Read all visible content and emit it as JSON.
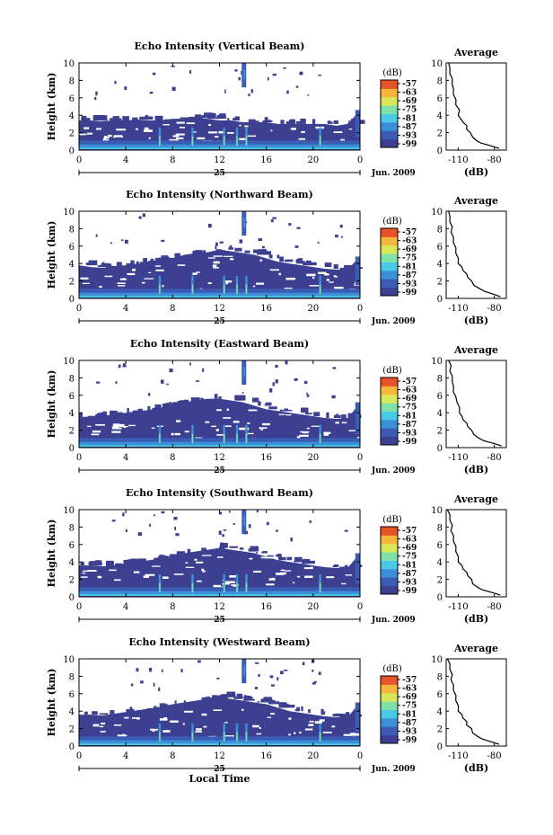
{
  "chart_data": [
    {
      "type": "heatmap",
      "title": "Echo Intensity (Vertical Beam)",
      "ylabel": "Height (km)",
      "xlabel": "",
      "x_ticks": [
        "0",
        "4",
        "8",
        "12",
        "16",
        "20",
        "0"
      ],
      "y_ticks": [
        "0",
        "2",
        "4",
        "6",
        "8",
        "10"
      ],
      "xlim": [
        0,
        24
      ],
      "ylim": [
        0,
        10
      ],
      "day_label": "25",
      "month_label": "Jun. 2009",
      "colorbar": {
        "unit": "(dB)",
        "ticks": [
          "-57",
          "-63",
          "-69",
          "-75",
          "-81",
          "-87",
          "-93",
          "-99"
        ]
      },
      "layer_top_km": [
        3.4,
        3.4,
        3.3,
        3.4,
        3.4,
        3.5,
        3.4,
        3.4,
        3.6,
        3.6,
        3.7,
        3.6,
        3.4,
        3.4,
        3.2,
        3.2,
        3.2,
        3.0,
        3.0,
        3.0,
        3.0,
        3.0,
        2.8,
        3.0,
        4.6
      ],
      "average_profile": {
        "title": "Average",
        "xlabel": "(dB)",
        "x_ticks": [
          "-110",
          "-80"
        ],
        "xlim": [
          -120,
          -70
        ],
        "y_ticks": [
          "0",
          "2",
          "4",
          "6",
          "8",
          "10"
        ],
        "ylim": [
          0,
          10
        ],
        "dB": [
          -76,
          -84,
          -91,
          -96,
          -98,
          -101,
          -103,
          -104,
          -106,
          -109,
          -110,
          -110,
          -112,
          -113,
          -114,
          -115,
          -115,
          -116,
          -117,
          -118,
          -118
        ],
        "height": [
          0.2,
          0.5,
          0.8,
          1.1,
          1.5,
          2.0,
          2.4,
          2.8,
          3.2,
          3.6,
          4.0,
          4.6,
          5.2,
          5.8,
          6.4,
          7.0,
          7.6,
          8.2,
          8.8,
          9.4,
          10.0
        ]
      }
    },
    {
      "type": "heatmap",
      "title": "Echo Intensity (Northward Beam)",
      "ylabel": "Height (km)",
      "xlabel": "",
      "x_ticks": [
        "0",
        "4",
        "8",
        "12",
        "16",
        "20",
        "0"
      ],
      "y_ticks": [
        "0",
        "2",
        "4",
        "6",
        "8",
        "10"
      ],
      "xlim": [
        0,
        24
      ],
      "ylim": [
        0,
        10
      ],
      "day_label": "25",
      "month_label": "Jun. 2009",
      "colorbar": {
        "unit": "(dB)",
        "ticks": [
          "-57",
          "-63",
          "-69",
          "-75",
          "-81",
          "-87",
          "-93",
          "-99"
        ]
      },
      "layer_top_km": [
        3.8,
        3.6,
        3.5,
        3.6,
        3.8,
        4.0,
        4.2,
        4.3,
        4.6,
        5.0,
        5.2,
        5.3,
        5.6,
        5.4,
        5.2,
        5.0,
        4.6,
        4.2,
        4.0,
        3.8,
        3.6,
        3.4,
        3.3,
        3.4,
        4.8
      ],
      "average_profile": {
        "title": "Average",
        "xlabel": "(dB)",
        "x_ticks": [
          "-110",
          "-80"
        ],
        "xlim": [
          -120,
          -70
        ],
        "dB": [
          -75,
          -82,
          -88,
          -93,
          -97,
          -100,
          -102,
          -104,
          -106,
          -108,
          -110,
          -111,
          -112,
          -113,
          -114,
          -115,
          -116,
          -116,
          -117,
          -118,
          -118
        ],
        "height": [
          0.2,
          0.5,
          0.8,
          1.1,
          1.5,
          2.0,
          2.4,
          2.8,
          3.2,
          3.6,
          4.0,
          4.6,
          5.2,
          5.8,
          6.4,
          7.0,
          7.6,
          8.2,
          8.8,
          9.4,
          10.0
        ]
      }
    },
    {
      "type": "heatmap",
      "title": "Echo Intensity (Eastward Beam)",
      "ylabel": "Height (km)",
      "xlabel": "",
      "x_ticks": [
        "0",
        "4",
        "8",
        "12",
        "16",
        "20",
        "0"
      ],
      "y_ticks": [
        "0",
        "2",
        "4",
        "6",
        "8",
        "10"
      ],
      "xlim": [
        0,
        24
      ],
      "ylim": [
        0,
        10
      ],
      "day_label": "25",
      "month_label": "Jun. 2009",
      "colorbar": {
        "unit": "(dB)",
        "ticks": [
          "-57",
          "-63",
          "-69",
          "-75",
          "-81",
          "-87",
          "-93",
          "-99"
        ]
      },
      "layer_top_km": [
        3.4,
        3.5,
        3.6,
        3.8,
        4.0,
        4.2,
        4.3,
        4.6,
        5.0,
        5.2,
        5.4,
        5.6,
        5.6,
        5.4,
        5.2,
        4.8,
        4.4,
        4.2,
        4.0,
        3.8,
        3.6,
        3.4,
        3.3,
        3.4,
        5.2
      ],
      "average_profile": {
        "title": "Average",
        "xlabel": "(dB)",
        "x_ticks": [
          "-110",
          "-80"
        ],
        "xlim": [
          -120,
          -70
        ],
        "dB": [
          -74,
          -82,
          -89,
          -94,
          -97,
          -100,
          -102,
          -104,
          -106,
          -108,
          -109,
          -110,
          -111,
          -113,
          -114,
          -115,
          -115,
          -116,
          -117,
          -117,
          -118
        ],
        "height": [
          0.2,
          0.5,
          0.8,
          1.1,
          1.5,
          2.0,
          2.4,
          2.8,
          3.2,
          3.6,
          4.0,
          4.6,
          5.2,
          5.8,
          6.4,
          7.0,
          7.6,
          8.2,
          8.8,
          9.4,
          10.0
        ]
      }
    },
    {
      "type": "heatmap",
      "title": "Echo Intensity (Southward Beam)",
      "ylabel": "Height (km)",
      "xlabel": "",
      "x_ticks": [
        "0",
        "4",
        "8",
        "12",
        "16",
        "20",
        "0"
      ],
      "y_ticks": [
        "0",
        "2",
        "4",
        "6",
        "8",
        "10"
      ],
      "xlim": [
        0,
        24
      ],
      "ylim": [
        0,
        10
      ],
      "day_label": "25",
      "month_label": "Jun. 2009",
      "colorbar": {
        "unit": "(dB)",
        "ticks": [
          "-57",
          "-63",
          "-69",
          "-75",
          "-81",
          "-87",
          "-93",
          "-99"
        ]
      },
      "layer_top_km": [
        3.6,
        3.6,
        3.5,
        3.6,
        3.8,
        4.0,
        4.2,
        4.4,
        4.6,
        5.0,
        5.2,
        5.4,
        5.6,
        5.4,
        5.2,
        5.0,
        4.6,
        4.2,
        4.0,
        3.8,
        3.6,
        3.4,
        3.3,
        3.4,
        5.0
      ],
      "average_profile": {
        "title": "Average",
        "xlabel": "(dB)",
        "x_ticks": [
          "-110",
          "-80"
        ],
        "xlim": [
          -120,
          -70
        ],
        "dB": [
          -75,
          -83,
          -90,
          -95,
          -98,
          -100,
          -102,
          -104,
          -106,
          -108,
          -110,
          -111,
          -112,
          -113,
          -114,
          -115,
          -116,
          -116,
          -117,
          -118,
          -119
        ],
        "height": [
          0.2,
          0.5,
          0.8,
          1.1,
          1.5,
          2.0,
          2.4,
          2.8,
          3.2,
          3.6,
          4.0,
          4.6,
          5.2,
          5.8,
          6.4,
          7.0,
          7.6,
          8.2,
          8.8,
          9.4,
          10.0
        ]
      }
    },
    {
      "type": "heatmap",
      "title": "Echo Intensity (Westward Beam)",
      "ylabel": "Height (km)",
      "xlabel": "Local Time",
      "x_ticks": [
        "0",
        "4",
        "8",
        "12",
        "16",
        "20",
        "0"
      ],
      "y_ticks": [
        "0",
        "2",
        "4",
        "6",
        "8",
        "10"
      ],
      "xlim": [
        0,
        24
      ],
      "ylim": [
        0,
        10
      ],
      "day_label": "25",
      "month_label": "Jun. 2009",
      "colorbar": {
        "unit": "(dB)",
        "ticks": [
          "-57",
          "-63",
          "-69",
          "-75",
          "-81",
          "-87",
          "-93",
          "-99"
        ]
      },
      "layer_top_km": [
        3.6,
        3.6,
        3.5,
        3.7,
        3.9,
        4.1,
        4.3,
        4.5,
        4.8,
        5.0,
        5.2,
        5.4,
        5.6,
        5.4,
        5.2,
        5.0,
        4.8,
        4.4,
        4.0,
        3.8,
        3.6,
        3.4,
        3.3,
        3.4,
        5.0
      ],
      "average_profile": {
        "title": "Average",
        "xlabel": "(dB)",
        "x_ticks": [
          "-110",
          "-80"
        ],
        "xlim": [
          -120,
          -70
        ],
        "dB": [
          -76,
          -84,
          -90,
          -95,
          -98,
          -100,
          -103,
          -104,
          -106,
          -108,
          -110,
          -111,
          -112,
          -113,
          -114,
          -115,
          -116,
          -116,
          -117,
          -118,
          -119
        ],
        "height": [
          0.2,
          0.5,
          0.8,
          1.1,
          1.5,
          2.0,
          2.4,
          2.8,
          3.2,
          3.6,
          4.0,
          4.6,
          5.2,
          5.8,
          6.4,
          7.0,
          7.6,
          8.2,
          8.8,
          9.4,
          10.0
        ]
      }
    }
  ],
  "colors": {
    "colormap": [
      "#3d3f91",
      "#3b5bb5",
      "#3a8fd8",
      "#48c9e6",
      "#7fe0a8",
      "#d9e85a",
      "#f5b63a",
      "#e8542a"
    ],
    "background": "#ffffff",
    "axis": "#000000"
  }
}
